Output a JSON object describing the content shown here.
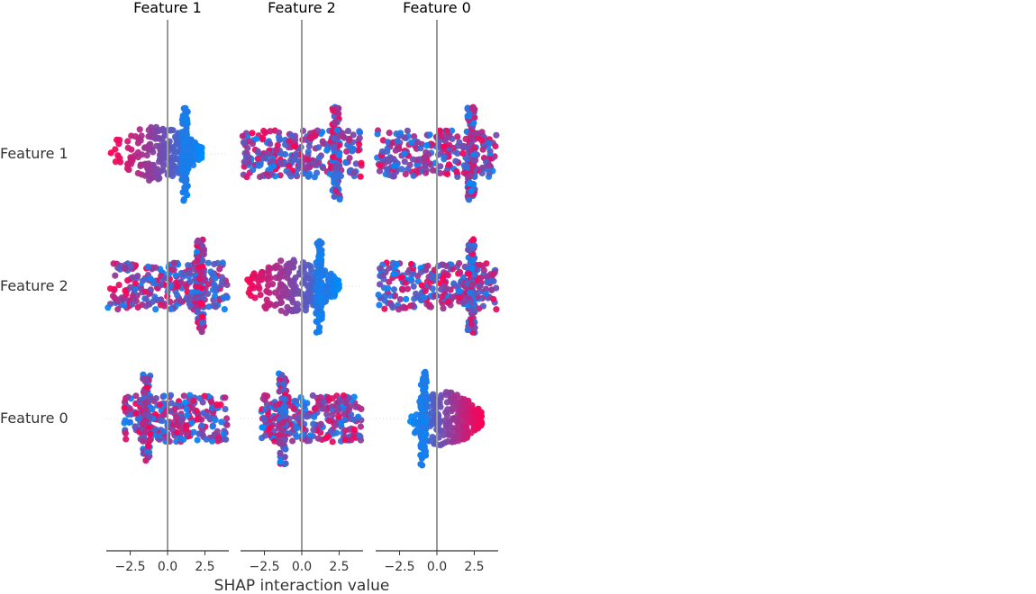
{
  "chart_data": {
    "type": "scatter",
    "subtype": "shap-interaction-beeswarm-grid",
    "column_titles": [
      "Feature 1",
      "Feature 2",
      "Feature 0"
    ],
    "row_labels": [
      "Feature 1",
      "Feature 2",
      "Feature 0"
    ],
    "xlabel": "SHAP interaction value",
    "xlim": [
      -4.1,
      4.1
    ],
    "xticks": [
      -2.5,
      0.0,
      2.5
    ],
    "xtick_labels": [
      "−2.5",
      "0.0",
      "2.5"
    ],
    "colors": {
      "low": "#008bfb",
      "high": "#ff0052",
      "axis": "#333333",
      "zero_line": "#999999"
    },
    "panels": [
      {
        "row": 0,
        "col": 0,
        "kind": "main",
        "range": [
          -3.8,
          2.3
        ],
        "clusters": [
          {
            "center": 1.15,
            "halfwidth": 0.2,
            "spread": 3.8
          }
        ]
      },
      {
        "row": 0,
        "col": 1,
        "kind": "interaction",
        "range": [
          -4.0,
          4.0
        ],
        "clusters": [
          {
            "center": 2.3,
            "halfwidth": 0.25,
            "spread": 3.8
          }
        ]
      },
      {
        "row": 0,
        "col": 2,
        "kind": "interaction",
        "range": [
          -4.0,
          4.0
        ],
        "clusters": [
          {
            "center": 2.3,
            "halfwidth": 0.25,
            "spread": 3.8
          }
        ]
      },
      {
        "row": 1,
        "col": 0,
        "kind": "interaction",
        "range": [
          -4.0,
          4.0
        ],
        "clusters": [
          {
            "center": 2.2,
            "halfwidth": 0.25,
            "spread": 3.8
          }
        ]
      },
      {
        "row": 1,
        "col": 1,
        "kind": "main",
        "range": [
          -3.8,
          2.5
        ],
        "clusters": [
          {
            "center": 1.15,
            "halfwidth": 0.2,
            "spread": 3.8
          }
        ]
      },
      {
        "row": 1,
        "col": 2,
        "kind": "interaction",
        "range": [
          -4.0,
          4.0
        ],
        "clusters": [
          {
            "center": 2.3,
            "halfwidth": 0.25,
            "spread": 3.8
          }
        ]
      },
      {
        "row": 2,
        "col": 0,
        "kind": "interaction",
        "range": [
          -2.9,
          4.0
        ],
        "clusters": [
          {
            "center": -1.4,
            "halfwidth": 0.25,
            "spread": 3.7
          }
        ]
      },
      {
        "row": 2,
        "col": 1,
        "kind": "interaction",
        "range": [
          -2.7,
          4.0
        ],
        "clusters": [
          {
            "center": -1.3,
            "halfwidth": 0.25,
            "spread": 3.7
          }
        ]
      },
      {
        "row": 2,
        "col": 2,
        "kind": "main",
        "range": [
          -1.8,
          3.0
        ],
        "clusters": [
          {
            "center": -0.9,
            "halfwidth": 0.2,
            "spread": 3.7
          }
        ]
      }
    ]
  }
}
